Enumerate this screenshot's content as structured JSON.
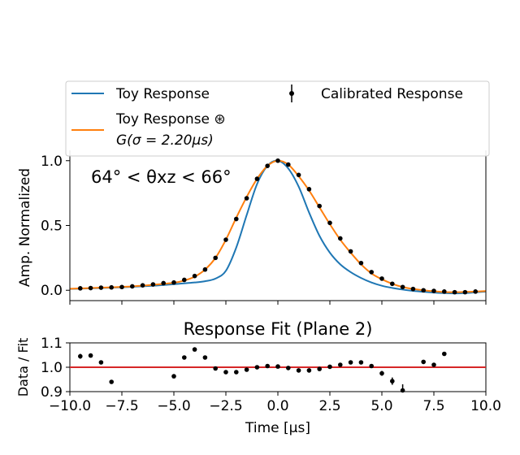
{
  "chart_data": [
    {
      "type": "line",
      "xlim": [
        -10,
        10
      ],
      "ylim": [
        -0.08,
        1.08
      ],
      "yticks": [
        0.0,
        0.5,
        1.0
      ],
      "ytick_labels": [
        "0.0",
        "0.5",
        "1.0"
      ],
      "ylabel": "Amp. Normalized",
      "annotation": "64° < θxz < 66°",
      "legend": {
        "placement": "top",
        "columns": 2,
        "entries": [
          {
            "name": "Toy Response",
            "color": "#1f77b4",
            "marker": "line"
          },
          {
            "name": "Calibrated Response",
            "color": "#000000",
            "marker": "errorbar"
          },
          {
            "name": "Toy Response ⊛",
            "name_line2": "G(σ = 2.20μs)",
            "color": "#ff7f0e",
            "marker": "line"
          }
        ]
      },
      "series": [
        {
          "name": "Toy Response",
          "color": "#1f77b4",
          "x": [
            -10,
            -9,
            -8,
            -7,
            -6,
            -5,
            -4,
            -3.5,
            -3,
            -2.5,
            -2,
            -1.5,
            -1,
            -0.5,
            0,
            0.5,
            1,
            1.5,
            2,
            2.5,
            3,
            3.5,
            4,
            4.5,
            5,
            5.5,
            6,
            6.5,
            7,
            7.5,
            8,
            8.5,
            9,
            9.5,
            10
          ],
          "y": [
            0.01,
            0.015,
            0.02,
            0.027,
            0.035,
            0.047,
            0.06,
            0.07,
            0.09,
            0.15,
            0.33,
            0.58,
            0.82,
            0.96,
            1.0,
            0.94,
            0.8,
            0.6,
            0.42,
            0.29,
            0.2,
            0.14,
            0.095,
            0.06,
            0.035,
            0.018,
            0.005,
            -0.005,
            -0.012,
            -0.018,
            -0.022,
            -0.024,
            -0.022,
            -0.016,
            -0.01
          ]
        },
        {
          "name": "Toy Response ⊛ G(σ = 2.20μs)",
          "color": "#ff7f0e",
          "x": [
            -10,
            -9,
            -8,
            -7,
            -6,
            -5,
            -4.5,
            -4,
            -3.5,
            -3,
            -2.5,
            -2,
            -1.5,
            -1,
            -0.5,
            0,
            0.5,
            1,
            1.5,
            2,
            2.5,
            3,
            3.5,
            4,
            4.5,
            5,
            5.5,
            6,
            6.5,
            7,
            7.5,
            8,
            8.5,
            9,
            9.5,
            10
          ],
          "y": [
            0.012,
            0.017,
            0.023,
            0.03,
            0.042,
            0.058,
            0.075,
            0.105,
            0.16,
            0.25,
            0.39,
            0.56,
            0.72,
            0.86,
            0.96,
            1.0,
            0.97,
            0.88,
            0.77,
            0.64,
            0.51,
            0.39,
            0.29,
            0.2,
            0.13,
            0.085,
            0.05,
            0.025,
            0.01,
            0.0,
            -0.008,
            -0.014,
            -0.015,
            -0.013,
            -0.01,
            -0.006
          ]
        },
        {
          "name": "Calibrated Response",
          "color": "#000000",
          "style": "points-errorbar",
          "x": [
            -9.5,
            -9,
            -8.5,
            -8,
            -7.5,
            -7,
            -6.5,
            -6,
            -5.5,
            -5,
            -4.5,
            -4,
            -3.5,
            -3,
            -2.5,
            -2,
            -1.5,
            -1,
            -0.5,
            0,
            0.5,
            1,
            1.5,
            2,
            2.5,
            3,
            3.5,
            4,
            4.5,
            5,
            5.5,
            6,
            6.5,
            7,
            7.5,
            8,
            8.5,
            9,
            9.5
          ],
          "y": [
            0.015,
            0.017,
            0.02,
            0.022,
            0.025,
            0.03,
            0.038,
            0.045,
            0.055,
            0.06,
            0.08,
            0.11,
            0.16,
            0.25,
            0.39,
            0.55,
            0.71,
            0.86,
            0.96,
            1.0,
            0.97,
            0.89,
            0.78,
            0.65,
            0.52,
            0.4,
            0.3,
            0.21,
            0.14,
            0.09,
            0.05,
            0.025,
            0.01,
            0.0,
            -0.005,
            -0.01,
            -0.015,
            -0.015,
            -0.01
          ]
        }
      ]
    },
    {
      "type": "scatter",
      "title": "Response Fit (Plane 2)",
      "xlabel": "Time [μs]",
      "ylabel": "Data / Fit",
      "xlim": [
        -10,
        10
      ],
      "ylim": [
        0.9,
        1.1
      ],
      "xticks": [
        -10,
        -7.5,
        -5,
        -2.5,
        0,
        2.5,
        5,
        7.5,
        10
      ],
      "xtick_labels": [
        "−10.0",
        "−7.5",
        "−5.0",
        "−2.5",
        "0.0",
        "2.5",
        "5.0",
        "7.5",
        "10.0"
      ],
      "yticks": [
        0.9,
        1.0,
        1.1
      ],
      "ytick_labels": [
        "0.9",
        "1.0",
        "1.1"
      ],
      "reference_line": {
        "y": 1.0,
        "color": "#d62728"
      },
      "series": [
        {
          "name": "Data / Fit",
          "color": "#000000",
          "x": [
            -9.5,
            -9,
            -8.5,
            -8,
            -5,
            -4.5,
            -4,
            -3.5,
            -3,
            -2.5,
            -2,
            -1.5,
            -1,
            -0.5,
            0,
            0.5,
            1,
            1.5,
            2,
            2.5,
            3,
            3.5,
            4,
            4.5,
            5,
            5.5,
            6,
            7,
            7.5,
            8
          ],
          "y": [
            1.045,
            1.048,
            1.02,
            0.94,
            0.963,
            1.04,
            1.073,
            1.04,
            0.995,
            0.98,
            0.98,
            0.99,
            1.0,
            1.005,
            1.003,
            0.997,
            0.987,
            0.987,
            0.993,
            1.002,
            1.01,
            1.02,
            1.02,
            1.005,
            0.975,
            0.943,
            0.905,
            1.022,
            1.01,
            1.055
          ],
          "err": [
            0.01,
            0.008,
            0.007,
            0.006,
            0.008,
            0.006,
            0.008,
            0.006,
            0.006,
            0.005,
            0.005,
            0.004,
            0.004,
            0.004,
            0.004,
            0.004,
            0.004,
            0.004,
            0.005,
            0.005,
            0.006,
            0.006,
            0.007,
            0.008,
            0.01,
            0.015,
            0.025,
            0.008,
            0.008,
            0.007
          ]
        }
      ]
    }
  ]
}
